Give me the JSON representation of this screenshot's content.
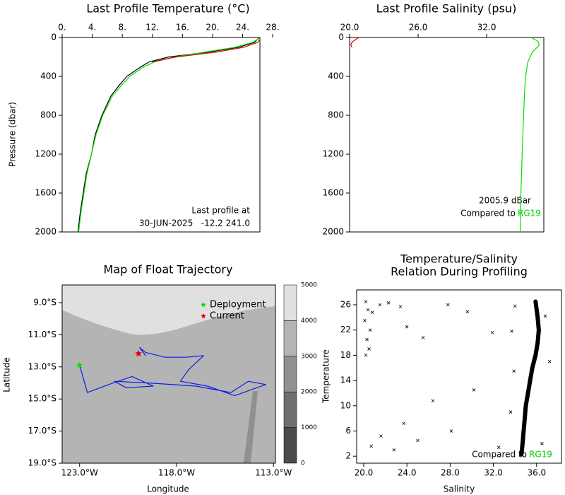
{
  "chart_data": [
    {
      "type": "profile",
      "title": "Last Profile Temperature (°C)",
      "y_label": "Pressure (dbar)",
      "xaxis": "top",
      "xlim": [
        0,
        26.3
      ],
      "xticks": [
        {
          "value": 0,
          "label": "0."
        },
        {
          "value": 4,
          "label": "4."
        },
        {
          "value": 8,
          "label": "8."
        },
        {
          "value": 12,
          "label": "12."
        },
        {
          "value": 16,
          "label": "16."
        },
        {
          "value": 20,
          "label": "20."
        },
        {
          "value": 24,
          "label": "24."
        },
        {
          "value": 28,
          "label": "28."
        }
      ],
      "ylim": [
        2000,
        0
      ],
      "yticks": [
        0,
        400,
        800,
        1200,
        1600,
        2000
      ],
      "annotations": [
        "Last profile at",
        "30-JUN-2025   -12.2 241.0"
      ],
      "series": [
        {
          "color": "#000000",
          "x": [
            26.2,
            25.6,
            23.5,
            19.5,
            14.2,
            11.6,
            10.5,
            8.6,
            7.5,
            6.5,
            5.3,
            4.4,
            3.9,
            3.2,
            2.8,
            2.4,
            2.1
          ],
          "y": [
            0,
            50,
            100,
            150,
            200,
            250,
            300,
            400,
            500,
            600,
            800,
            1000,
            1200,
            1400,
            1600,
            1800,
            2000
          ]
        },
        {
          "color": "#00e000",
          "x": [
            26.4,
            25.3,
            23.0,
            19.0,
            15.0,
            12.3,
            10.9,
            9.0,
            7.8,
            6.7,
            5.4,
            4.5,
            3.9,
            3.3,
            2.9,
            2.5,
            2.2
          ],
          "y": [
            0,
            50,
            100,
            150,
            200,
            250,
            300,
            400,
            500,
            600,
            800,
            1000,
            1200,
            1400,
            1600,
            1800,
            2000
          ]
        },
        {
          "color": "#e00000",
          "x": [
            26.5,
            26.0,
            24.2,
            20.5,
            15.2,
            12.0
          ],
          "y": [
            0,
            50,
            100,
            150,
            200,
            250
          ]
        }
      ]
    },
    {
      "type": "profile",
      "title": "Last Profile Salinity (psu)",
      "xaxis": "top",
      "xlim": [
        20,
        37
      ],
      "xticks": [
        {
          "value": 20,
          "label": "20.0"
        },
        {
          "value": 26,
          "label": "26.0"
        },
        {
          "value": 32,
          "label": "32.0"
        }
      ],
      "ylim": [
        2000,
        0
      ],
      "yticks": [
        0,
        400,
        800,
        1200,
        1600,
        2000
      ],
      "annotations": [
        "2005.9 dBar",
        "Compared to",
        "RG19"
      ],
      "series": [
        {
          "color": "#00e000",
          "x": [
            35.9,
            36.5,
            36.6,
            36.0,
            35.6,
            35.4,
            35.3,
            35.2,
            35.1,
            35.0,
            34.95
          ],
          "y": [
            0,
            40,
            80,
            150,
            250,
            400,
            600,
            900,
            1200,
            1600,
            2000
          ]
        },
        {
          "color": "#e00000",
          "x": [
            20.8,
            20.3,
            20.1,
            20.2
          ],
          "y": [
            0,
            40,
            70,
            100
          ]
        }
      ]
    },
    {
      "type": "map",
      "title": "Map of Float Trajectory",
      "x_label": "Longitude",
      "y_label": "Latitude",
      "xaxis": "bottom",
      "xlim": [
        -123.9,
        -112.9
      ],
      "xticks": [
        {
          "value": -123,
          "label": "123.0°W"
        },
        {
          "value": -118,
          "label": "118.0°W"
        },
        {
          "value": -113,
          "label": "113.0°W"
        }
      ],
      "ylim": [
        -19,
        -7.9
      ],
      "yticks": [
        {
          "value": -9,
          "label": "9.0°S"
        },
        {
          "value": -11,
          "label": "11.0°S"
        },
        {
          "value": -13,
          "label": "13.0°S"
        },
        {
          "value": -15,
          "label": "15.0°S"
        },
        {
          "value": -17,
          "label": "17.0°S"
        },
        {
          "value": -19,
          "label": "19.0°S"
        }
      ],
      "colorbar": {
        "ticks": [
          0,
          1000,
          2000,
          3000,
          4000,
          5000
        ],
        "colors": [
          "#4a4a4a",
          "#6e6e6e",
          "#909090",
          "#b4b4b4",
          "#e0e0e0"
        ]
      },
      "series": [
        {
          "color": "#0a1ee6",
          "x": [
            -123.0,
            -122.6,
            -121.5,
            -120.3,
            -119.2,
            -120.6,
            -121.2,
            -119.5,
            -117.0,
            -115.2,
            -114.3,
            -113.4,
            -115.0,
            -116.4,
            -117.8,
            -117.4,
            -116.6,
            -117.5,
            -118.6,
            -119.6,
            -119.9,
            -119.6
          ],
          "y": [
            -12.9,
            -14.6,
            -14.1,
            -13.6,
            -14.2,
            -14.3,
            -13.9,
            -14.0,
            -14.2,
            -14.6,
            -13.9,
            -14.1,
            -14.8,
            -14.2,
            -13.9,
            -13.2,
            -12.3,
            -12.4,
            -12.4,
            -12.1,
            -11.8,
            -12.3
          ]
        }
      ],
      "markers": [
        {
          "name": "Deployment",
          "color": "#00e000",
          "x": -123.0,
          "y": -12.9
        },
        {
          "name": "Current",
          "color": "#e00000",
          "x": -119.96,
          "y": -12.17
        }
      ]
    },
    {
      "type": "scatter",
      "title": [
        "Temperature/Salinity",
        "Relation During Profiling"
      ],
      "x_label": "Salinity",
      "y_label": "Temperature",
      "xaxis": "bottom",
      "xlim": [
        19.35,
        38.3
      ],
      "xticks": [
        {
          "value": 20,
          "label": "20.0"
        },
        {
          "value": 24,
          "label": "24.0"
        },
        {
          "value": 28,
          "label": "28.0"
        },
        {
          "value": 32,
          "label": "32.0"
        },
        {
          "value": 36,
          "label": "36.0"
        }
      ],
      "ylim": [
        0.9,
        28.35
      ],
      "yticks": [
        2,
        6,
        10,
        14,
        18,
        22,
        26
      ],
      "annotations": [
        "Compared to",
        "RG19"
      ],
      "series": [
        {
          "color": "#000000",
          "style": "line",
          "x": [
            34.6,
            34.7,
            34.8,
            34.9,
            35.0,
            35.2,
            35.4,
            35.6,
            35.9,
            36.1,
            36.2,
            36.1,
            35.9
          ],
          "y": [
            2.3,
            4,
            6,
            8,
            10,
            12,
            14,
            16,
            18,
            20,
            22,
            24,
            26.5
          ]
        },
        {
          "color": "#000000",
          "style": "cross",
          "x": [
            20.2,
            20.4,
            20.1,
            20.6,
            20.3,
            20.5,
            20.2,
            20.8,
            21.5,
            22.3,
            23.4,
            24.0,
            25.5,
            27.8,
            29.6,
            31.9,
            20.7,
            21.6,
            22.8,
            23.7,
            25.0,
            26.4,
            28.1,
            30.2,
            32.5,
            33.6,
            33.9,
            33.7,
            34.0,
            36.8,
            37.2,
            36.5
          ],
          "y": [
            26.5,
            25.2,
            23.5,
            22.0,
            20.5,
            19.0,
            18.0,
            24.8,
            26.0,
            26.3,
            25.7,
            22.5,
            20.8,
            26.0,
            24.9,
            21.6,
            3.6,
            5.2,
            3.0,
            7.2,
            4.5,
            10.8,
            6.0,
            12.5,
            3.4,
            9.0,
            15.5,
            21.8,
            25.8,
            24.2,
            17.0,
            4.0
          ]
        }
      ]
    }
  ]
}
